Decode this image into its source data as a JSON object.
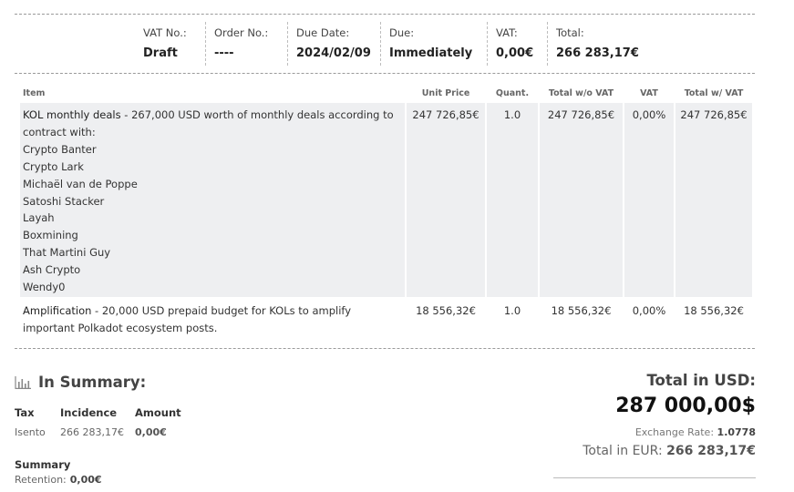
{
  "header": {
    "vat_no": {
      "label": "VAT No.:",
      "value": ""
    },
    "order_no": {
      "label": "Order No.:",
      "value": "----"
    },
    "due_date": {
      "label": "Due Date:",
      "value": "2024/02/09"
    },
    "due": {
      "label": "Due:",
      "value": "Immediately"
    },
    "vat": {
      "label": "VAT:",
      "value": "0,00€"
    },
    "total": {
      "label": "Total:",
      "value": "266 283,17€"
    }
  },
  "items_table": {
    "columns": [
      "Item",
      "Unit Price",
      "Quant.",
      "Total w/o VAT",
      "VAT",
      "Total w/ VAT"
    ],
    "rows": [
      {
        "title": "KOL monthly deals",
        "desc": " - 267,000 USD worth of monthly deals according to contract with:",
        "names": [
          "Crypto Banter",
          "Crypto Lark",
          "Michaël van de Poppe",
          "Satoshi Stacker",
          "Layah",
          "Boxmining",
          "That Martini Guy",
          "Ash Crypto",
          "Wendy0"
        ],
        "unit_price": "247 726,85€",
        "quantity": "1.0",
        "total_wo_vat": "247 726,85€",
        "vat": "0,00%",
        "total_w_vat": "247 726,85€"
      },
      {
        "title": "Amplification",
        "desc": " - 20,000 USD prepaid budget for KOLs to amplify important Polkadot ecosystem posts.",
        "unit_price": "18 556,32€",
        "quantity": "1.0",
        "total_wo_vat": "18 556,32€",
        "vat": "0,00%",
        "total_w_vat": "18 556,32€"
      }
    ]
  },
  "summary": {
    "title": "In Summary:",
    "tax_headers": [
      "Tax",
      "Incidence",
      "Amount"
    ],
    "tax_row": {
      "tax": "Isento",
      "incidence": "266 283,17€",
      "amount": "0,00€"
    },
    "section_title": "Summary",
    "retention_label": "Retention:",
    "retention_value": "0,00€"
  },
  "totals": {
    "usd_label": "Total in USD:",
    "usd_value": "287 000,00$",
    "rate_label": "Exchange Rate:",
    "rate_value": "1.0778",
    "eur_label": "Total in EUR:",
    "eur_value": "266 283,17€"
  },
  "colors": {
    "row_shade": "#eeeff1",
    "text_dark": "#222222",
    "text_muted": "#666666"
  }
}
